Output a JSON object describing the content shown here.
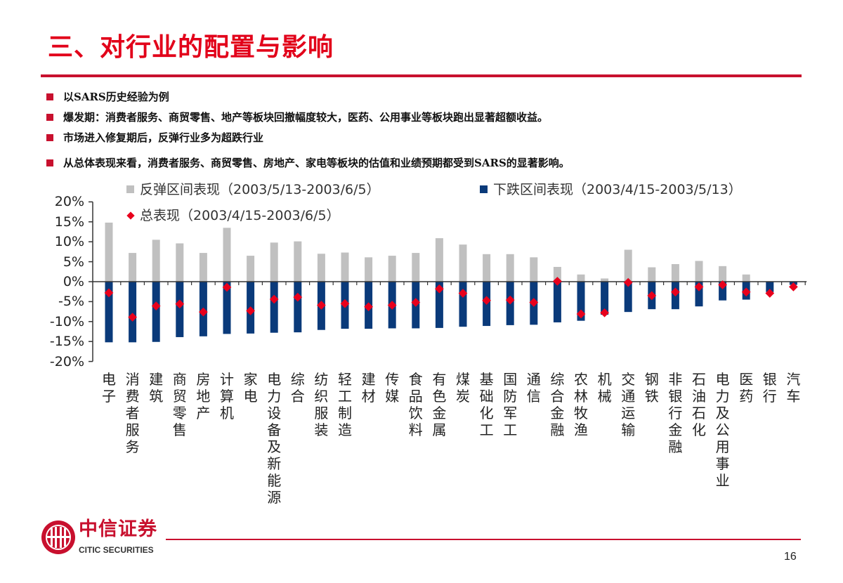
{
  "header": {
    "title": "三、对行业的配置与影响"
  },
  "bullets": [
    "以SARS历史经验为例",
    "爆发期：消费者服务、商贸零售、地产等板块回撤幅度较大，医药、公用事业等板块跑出显著超额收益。",
    "市场进入修复期后，反弹行业多为超跌行业",
    "从总体表现来看，消费者服务、商贸零售、房地产、家电等板块的估值和业绩预期都受到SARS的显著影响。"
  ],
  "colors": {
    "accent": "#c8102e",
    "rebound": "#c0c0c0",
    "decline": "#0a3a7a",
    "total": "#e8001c"
  },
  "chart_data": {
    "type": "bar",
    "title": "",
    "xlabel": "",
    "ylabel": "",
    "ylim": [
      -20,
      20
    ],
    "yticks": [
      "20%",
      "15%",
      "10%",
      "5%",
      "0%",
      "-5%",
      "-10%",
      "-15%",
      "-20%"
    ],
    "legend_placement": "top",
    "grid": false,
    "categories": [
      "电子",
      "消费者服务",
      "建筑",
      "商贸零售",
      "房地产",
      "计算机",
      "家电",
      "电力设备及新能源",
      "综合",
      "纺织服装",
      "轻工制造",
      "建材",
      "传媒",
      "食品饮料",
      "有色金属",
      "煤炭",
      "基础化工",
      "国防军工",
      "通信",
      "综合金融",
      "农林牧渔",
      "机械",
      "交通运输",
      "钢铁",
      "非银行金融",
      "石油石化",
      "电力及公用事业",
      "医药",
      "银行",
      "汽车"
    ],
    "series": [
      {
        "name": "反弹区间表现（2003/5/13-2003/6/5）",
        "kind": "bar",
        "color": "#c0c0c0",
        "values": [
          14.8,
          7.2,
          10.5,
          9.6,
          7.2,
          13.5,
          6.5,
          9.8,
          10.1,
          7.0,
          7.3,
          6.1,
          6.5,
          7.2,
          10.9,
          9.3,
          6.9,
          6.9,
          6.1,
          3.7,
          1.8,
          0.8,
          8.0,
          3.6,
          4.4,
          5.2,
          3.9,
          1.8,
          0,
          0
        ]
      },
      {
        "name": "下跌区间表现（2003/4/15-2003/5/13）",
        "kind": "bar",
        "color": "#0a3a7a",
        "values": [
          -15.2,
          -15.2,
          -15.1,
          -13.9,
          -13.7,
          -13.1,
          -13.0,
          -12.8,
          -12.7,
          -12.1,
          -11.8,
          -11.8,
          -11.7,
          -11.7,
          -11.6,
          -11.3,
          -11.1,
          -10.9,
          -10.8,
          -10.2,
          -9.8,
          -8.3,
          -7.6,
          -6.9,
          -6.9,
          -6.2,
          -4.7,
          -4.5,
          -2.6,
          -0.8
        ]
      },
      {
        "name": "总表现（2003/4/15-2003/6/5）",
        "kind": "marker",
        "color": "#e8001c",
        "values": [
          -2.8,
          -8.9,
          -6.1,
          -5.6,
          -7.6,
          -1.4,
          -7.3,
          -4.4,
          -3.9,
          -5.9,
          -5.5,
          -6.3,
          -5.9,
          -5.2,
          -1.8,
          -2.9,
          -4.7,
          -4.6,
          -5.2,
          0.1,
          -8.1,
          -7.8,
          -0.2,
          -3.5,
          -2.6,
          -1.3,
          -0.8,
          -2.6,
          -2.9,
          -1.3
        ]
      }
    ]
  },
  "footer": {
    "logo_cn": "中信证券",
    "logo_en": "CITIC SECURITIES",
    "page": "16"
  }
}
